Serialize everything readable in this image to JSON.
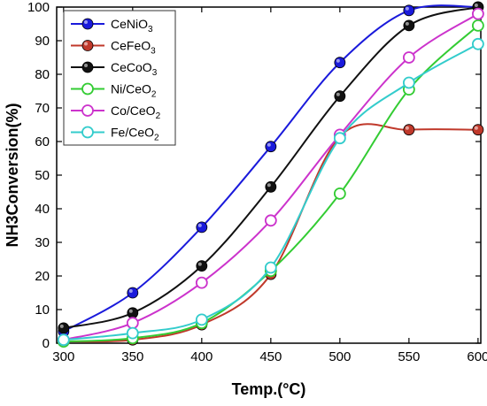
{
  "chart_data": {
    "type": "line",
    "xlabel": "Temp.(°C)",
    "ylabel": "NH3Conversion(%)",
    "xlim": [
      295,
      602
    ],
    "ylim": [
      0,
      100
    ],
    "xticks": [
      "300",
      "350",
      "400",
      "450",
      "500",
      "550",
      "600"
    ],
    "yticks": [
      "0",
      "10",
      "20",
      "30",
      "40",
      "50",
      "60",
      "70",
      "80",
      "90",
      "100"
    ],
    "grid": false,
    "legend": "top-left",
    "x": [
      300,
      350,
      400,
      450,
      500,
      550,
      600
    ],
    "series": [
      {
        "name": "CeNiO3",
        "base": "CeNiO",
        "sub": "3",
        "marker": "solid",
        "color": "#1a1adb",
        "values": [
          3.5,
          15,
          34.5,
          58.5,
          83.5,
          99,
          100
        ]
      },
      {
        "name": "CeFeO3",
        "base": "CeFeO",
        "sub": "3",
        "marker": "solid",
        "color": "#c0392b",
        "values": [
          0.5,
          1,
          5.5,
          20.5,
          61.5,
          63.5,
          63.5
        ]
      },
      {
        "name": "CeCoO3",
        "base": "CeCoO",
        "sub": "3",
        "marker": "solid",
        "color": "#111111",
        "values": [
          4.5,
          9,
          23,
          46.5,
          73.5,
          94.5,
          100
        ]
      },
      {
        "name": "Ni/CeO2",
        "base": "Ni/CeO",
        "sub": "2",
        "marker": "open",
        "color": "#33cc33",
        "values": [
          0.5,
          1.5,
          6,
          21.5,
          44.5,
          75.5,
          94.5
        ]
      },
      {
        "name": "Co/CeO2",
        "base": "Co/CeO",
        "sub": "2",
        "marker": "open",
        "color": "#cc33cc",
        "values": [
          1,
          6,
          18,
          36.5,
          62,
          85,
          98
        ]
      },
      {
        "name": "Fe/CeO2",
        "base": "Fe/CeO",
        "sub": "2",
        "marker": "open",
        "color": "#33cccc",
        "values": [
          1,
          3,
          7,
          22.5,
          61,
          77.5,
          89
        ]
      }
    ]
  }
}
